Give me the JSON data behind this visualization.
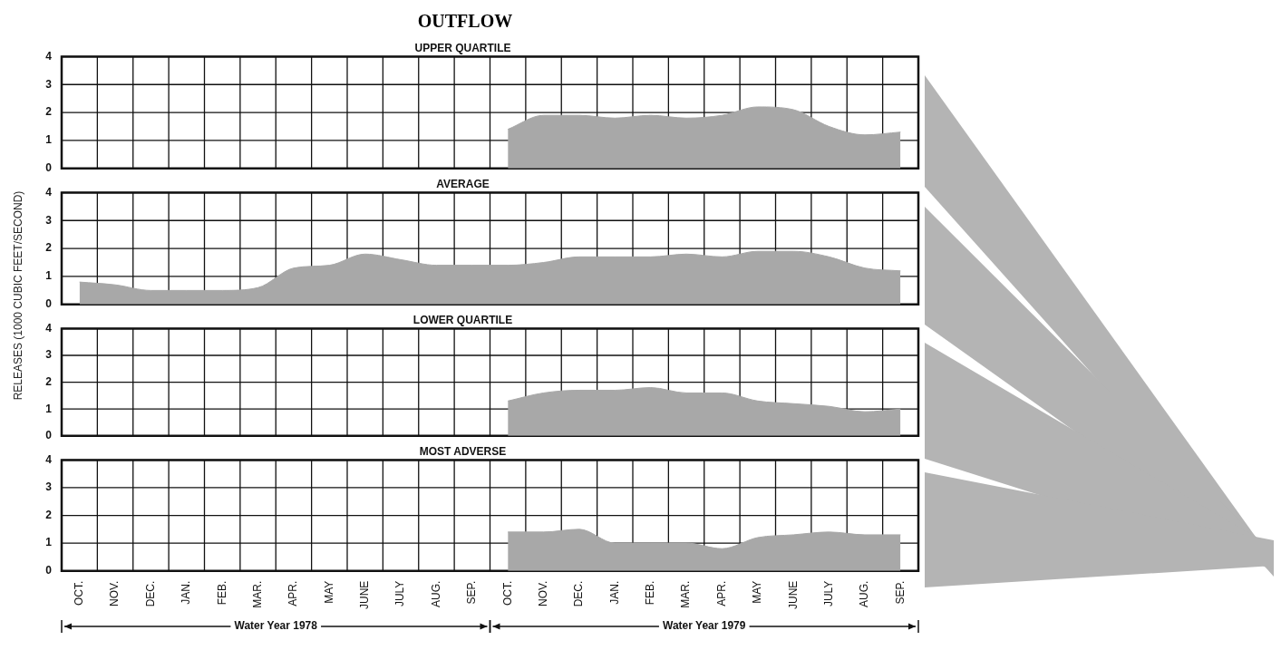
{
  "chart_data": [
    {
      "type": "area",
      "title": "OUTFLOW",
      "subtitle": "UPPER QUARTILE",
      "categories": [
        null,
        null,
        null,
        null,
        null,
        null,
        null,
        null,
        null,
        null,
        null,
        null,
        null,
        null,
        null,
        null,
        null,
        null,
        null,
        null,
        null,
        null,
        null,
        null
      ],
      "series": [
        {
          "color": "#a8a8a8",
          "values": [
            null,
            null,
            null,
            null,
            null,
            null,
            null,
            null,
            null,
            null,
            null,
            null,
            1.4,
            1.9,
            1.9,
            1.8,
            1.9,
            1.8,
            1.9,
            2.2,
            2.1,
            1.5,
            1.2,
            1.3
          ]
        }
      ],
      "ylim": [
        0,
        4
      ],
      "yticks": [
        0,
        1,
        2,
        3,
        4
      ],
      "grid": true,
      "tick_labels": "y"
    },
    {
      "type": "area",
      "title": "AVERAGE",
      "ylabel": "RELEASES (1000 CUBIC FEET/SECOND)",
      "categories": [
        null,
        null,
        null,
        null,
        null,
        null,
        null,
        null,
        null,
        null,
        null,
        null,
        null,
        null,
        null,
        null,
        null,
        null,
        null,
        null,
        null,
        null,
        null,
        null
      ],
      "series": [
        {
          "color": "#a8a8a8",
          "values": [
            0.8,
            0.7,
            0.5,
            0.5,
            0.5,
            0.6,
            1.3,
            1.4,
            1.8,
            1.6,
            1.4,
            1.4,
            1.4,
            1.5,
            1.7,
            1.7,
            1.7,
            1.8,
            1.7,
            1.9,
            1.9,
            1.7,
            1.3,
            1.2
          ]
        }
      ],
      "ylim": [
        0,
        4
      ],
      "yticks": [
        0,
        1,
        2,
        3,
        4
      ],
      "grid": true,
      "tick_labels": "y"
    },
    {
      "type": "area",
      "title": "LOWER QUARTILE",
      "categories": [
        null,
        null,
        null,
        null,
        null,
        null,
        null,
        null,
        null,
        null,
        null,
        null,
        null,
        null,
        null,
        null,
        null,
        null,
        null,
        null,
        null,
        null,
        null,
        null
      ],
      "series": [
        {
          "color": "#a8a8a8",
          "values": [
            null,
            null,
            null,
            null,
            null,
            null,
            null,
            null,
            null,
            null,
            null,
            null,
            1.3,
            1.6,
            1.7,
            1.7,
            1.8,
            1.6,
            1.6,
            1.3,
            1.2,
            1.1,
            0.9,
            1.0
          ]
        }
      ],
      "ylim": [
        0,
        4
      ],
      "yticks": [
        0,
        1,
        2,
        3,
        4
      ],
      "grid": true,
      "tick_labels": "y"
    },
    {
      "type": "area",
      "title": "MOST ADVERSE",
      "categories": [
        "OCT.",
        "NOV.",
        "DEC.",
        "JAN.",
        "FEB.",
        "MAR.",
        "APR.",
        "MAY",
        "JUNE",
        "JULY",
        "AUG.",
        "SEP.",
        "OCT.",
        "NOV.",
        "DEC.",
        "JAN.",
        "FEB.",
        "MAR.",
        "APR.",
        "MAY",
        "JUNE",
        "JULY",
        "AUG.",
        "SEP."
      ],
      "series": [
        {
          "color": "#a8a8a8",
          "values": [
            null,
            null,
            null,
            null,
            null,
            null,
            null,
            null,
            null,
            null,
            null,
            null,
            1.4,
            1.4,
            1.5,
            1.0,
            1.0,
            1.0,
            0.8,
            1.2,
            1.3,
            1.4,
            1.3,
            1.3
          ]
        }
      ],
      "ylim": [
        0,
        4
      ],
      "yticks": [
        0,
        1,
        2,
        3,
        4
      ],
      "grid": true,
      "annotations": [
        "Water Year 1978",
        "Water Year 1979"
      ]
    }
  ]
}
